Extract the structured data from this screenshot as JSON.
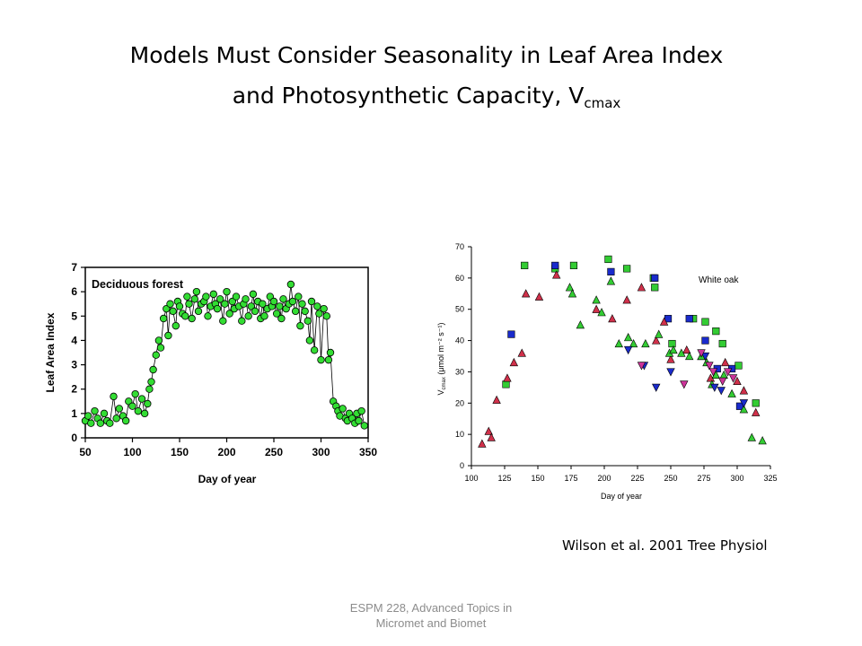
{
  "slide": {
    "title_line1": "Models Must Consider Seasonality in Leaf Area Index",
    "title_line2": "and Photosynthetic Capacity, V",
    "title_sub": "cmax",
    "citation": "Wilson et al. 2001 Tree Physiol",
    "footer_line1": "ESPM 228, Advanced Topics in",
    "footer_line2": "Micromet and Biomet"
  },
  "chart_data": [
    {
      "type": "scatter",
      "annotation": "Deciduous forest",
      "xlabel": "Day of year",
      "ylabel": "Leaf Area Index",
      "xlim": [
        50,
        350
      ],
      "ylim": [
        0,
        7
      ],
      "xticks": [
        50,
        100,
        150,
        200,
        250,
        300,
        350
      ],
      "yticks": [
        0,
        1,
        2,
        3,
        4,
        5,
        6,
        7
      ],
      "grid": false,
      "marker_color": "#33dd33",
      "connected": true,
      "series": [
        {
          "x": [
            50,
            53,
            56,
            60,
            63,
            66,
            70,
            73,
            76,
            80,
            83,
            86,
            90,
            93,
            96,
            100,
            103,
            106,
            110,
            113,
            116,
            118,
            120,
            122,
            125,
            128,
            130,
            133,
            136,
            138,
            140,
            143,
            146,
            148,
            150,
            153,
            156,
            158,
            160,
            163,
            166,
            168,
            170,
            173,
            176,
            178,
            180,
            183,
            186,
            188,
            190,
            193,
            196,
            198,
            200,
            203,
            206,
            208,
            210,
            213,
            216,
            218,
            220,
            223,
            226,
            228,
            230,
            233,
            236,
            238,
            240,
            243,
            246,
            248,
            250,
            253,
            256,
            258,
            260,
            263,
            266,
            268,
            270,
            273,
            276,
            278,
            280,
            283,
            286,
            288,
            290,
            293,
            296,
            298,
            300,
            303,
            306,
            308,
            310,
            313,
            316,
            318,
            320,
            323,
            326,
            328,
            330,
            333,
            336,
            338,
            340,
            343,
            346
          ],
          "y": [
            0.7,
            0.9,
            0.6,
            1.1,
            0.8,
            0.6,
            1.0,
            0.7,
            0.6,
            1.7,
            0.8,
            1.2,
            0.9,
            0.7,
            1.5,
            1.3,
            1.8,
            1.1,
            1.6,
            1.0,
            1.4,
            2.0,
            2.3,
            2.8,
            3.4,
            4.0,
            3.7,
            4.9,
            5.3,
            4.2,
            5.5,
            5.2,
            4.6,
            5.6,
            5.4,
            5.1,
            5.0,
            5.8,
            5.5,
            4.9,
            5.7,
            6.0,
            5.2,
            5.5,
            5.6,
            5.8,
            5.0,
            5.4,
            5.9,
            5.5,
            5.3,
            5.7,
            4.8,
            5.5,
            6.0,
            5.1,
            5.6,
            5.3,
            5.8,
            5.4,
            4.8,
            5.5,
            5.7,
            5.0,
            5.4,
            5.9,
            5.2,
            5.6,
            4.9,
            5.5,
            5.0,
            5.3,
            5.8,
            5.4,
            5.6,
            5.1,
            5.4,
            4.9,
            5.7,
            5.3,
            5.5,
            6.3,
            5.6,
            5.2,
            5.8,
            4.6,
            5.5,
            5.2,
            4.8,
            4.0,
            5.6,
            3.6,
            5.4,
            5.1,
            3.2,
            5.3,
            5.0,
            3.2,
            3.5,
            1.5,
            1.3,
            1.1,
            0.9,
            1.2,
            0.8,
            0.7,
            1.0,
            0.8,
            0.6,
            1.0,
            0.7,
            1.1,
            0.5
          ]
        }
      ]
    },
    {
      "type": "scatter",
      "annotation": "White oak",
      "xlabel": "Day of year",
      "ylabel": "V",
      "ylabel_sub": "cmax",
      "ylabel_unit": " (μmol m⁻² s⁻¹)",
      "xlim": [
        100,
        325
      ],
      "ylim": [
        0,
        70
      ],
      "xticks": [
        100,
        125,
        150,
        175,
        200,
        225,
        250,
        275,
        300,
        325
      ],
      "yticks": [
        0,
        10,
        20,
        30,
        40,
        50,
        60,
        70
      ],
      "grid": false,
      "series": [
        {
          "marker": "square",
          "color": "#33cc33",
          "x": [
            126,
            140,
            163,
            177,
            203,
            217,
            237,
            238,
            251,
            267,
            276,
            284,
            289,
            301,
            314
          ],
          "y": [
            26,
            64,
            63,
            64,
            66,
            63,
            60,
            57,
            39,
            47,
            46,
            43,
            39,
            32,
            20
          ]
        },
        {
          "marker": "square",
          "color": "#1a2bcc",
          "x": [
            130,
            163,
            205,
            238,
            248,
            264,
            276,
            285,
            296,
            302
          ],
          "y": [
            42,
            64,
            62,
            60,
            47,
            47,
            40,
            31,
            31,
            19
          ]
        },
        {
          "marker": "triangle-up",
          "color": "#d0304a",
          "x": [
            108,
            113,
            115,
            119,
            127,
            132,
            138,
            141,
            151,
            164,
            194,
            206,
            217,
            228,
            239,
            245,
            250,
            262,
            273,
            280,
            291,
            300,
            305,
            314
          ],
          "y": [
            7,
            11,
            9,
            21,
            28,
            33,
            36,
            55,
            54,
            61,
            50,
            47,
            53,
            57,
            40,
            46,
            34,
            37,
            35,
            28,
            33,
            27,
            24,
            17
          ]
        },
        {
          "marker": "triangle-up",
          "color": "#33cc33",
          "x": [
            174,
            176,
            182,
            194,
            198,
            205,
            211,
            218,
            222,
            231,
            241,
            249,
            252,
            258,
            264,
            273,
            277,
            281,
            284,
            290,
            296,
            305,
            311,
            319
          ],
          "y": [
            57,
            55,
            45,
            53,
            49,
            59,
            39,
            41,
            39,
            39,
            42,
            36,
            37,
            36,
            35,
            35,
            33,
            26,
            29,
            29,
            23,
            18,
            9,
            8
          ]
        },
        {
          "marker": "triangle-down",
          "color": "#1a2bcc",
          "x": [
            218,
            230,
            239,
            250,
            276,
            283,
            288,
            305
          ],
          "y": [
            37,
            32,
            25,
            30,
            35,
            25,
            24,
            20
          ]
        },
        {
          "marker": "triangle-down",
          "color": "#cc3399",
          "x": [
            228,
            260,
            273,
            279,
            282,
            289,
            293,
            297
          ],
          "y": [
            32,
            26,
            36,
            32,
            30,
            27,
            30,
            28
          ]
        }
      ]
    }
  ]
}
